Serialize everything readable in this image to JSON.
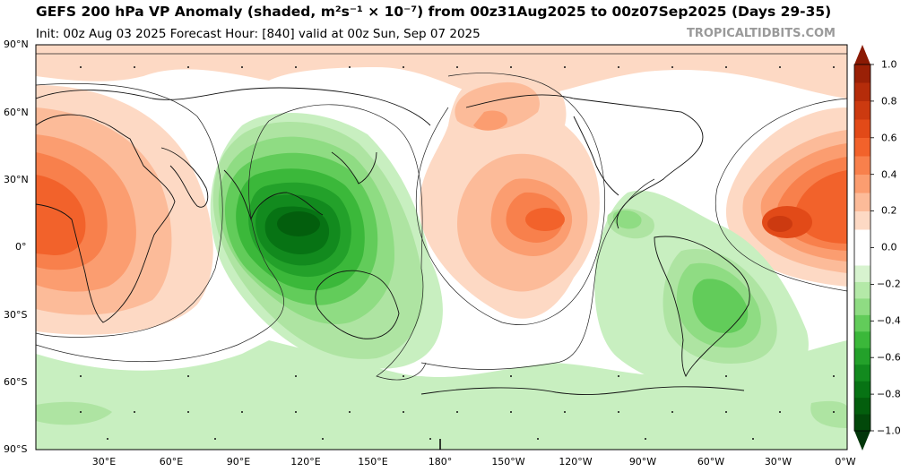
{
  "header": {
    "title": "GEFS 200 hPa VP Anomaly (shaded, m²s⁻¹ × 10⁻⁷) from 00z31Aug2025 to 00z07Sep2025 (Days 29-35)",
    "subtitle": "Init: 00z Aug 03 2025   Forecast Hour: [840]   valid at 00z Sun, Sep 07 2025",
    "credit": "TROPICALTIDBITS.COM"
  },
  "map": {
    "lat_labels": [
      "90°N",
      "60°N",
      "30°N",
      "0°",
      "30°S",
      "60°S",
      "90°S"
    ],
    "lon_labels": [
      "30°E",
      "60°E",
      "90°E",
      "120°E",
      "150°E",
      "180°",
      "150°W",
      "120°W",
      "90°W",
      "60°W",
      "30°W",
      "0°W"
    ]
  },
  "colorbar": {
    "ticks": [
      "1.0",
      "0.8",
      "0.6",
      "0.4",
      "0.2",
      "0.0",
      "−0.2",
      "−0.4",
      "−0.6",
      "−0.8",
      "−1.0"
    ],
    "colors_positive": [
      "#fdd9c4",
      "#fcbb99",
      "#fb9d70",
      "#f8804c",
      "#f2622b",
      "#e24a18",
      "#cc3a10",
      "#b52c0a",
      "#9a2006"
    ],
    "colors_negative": [
      "#d7f3cf",
      "#b4e9a8",
      "#8fdc83",
      "#62cc5a",
      "#3bb83a",
      "#23a12a",
      "#128a1e",
      "#077314",
      "#035e0d",
      "#02480a"
    ]
  }
}
